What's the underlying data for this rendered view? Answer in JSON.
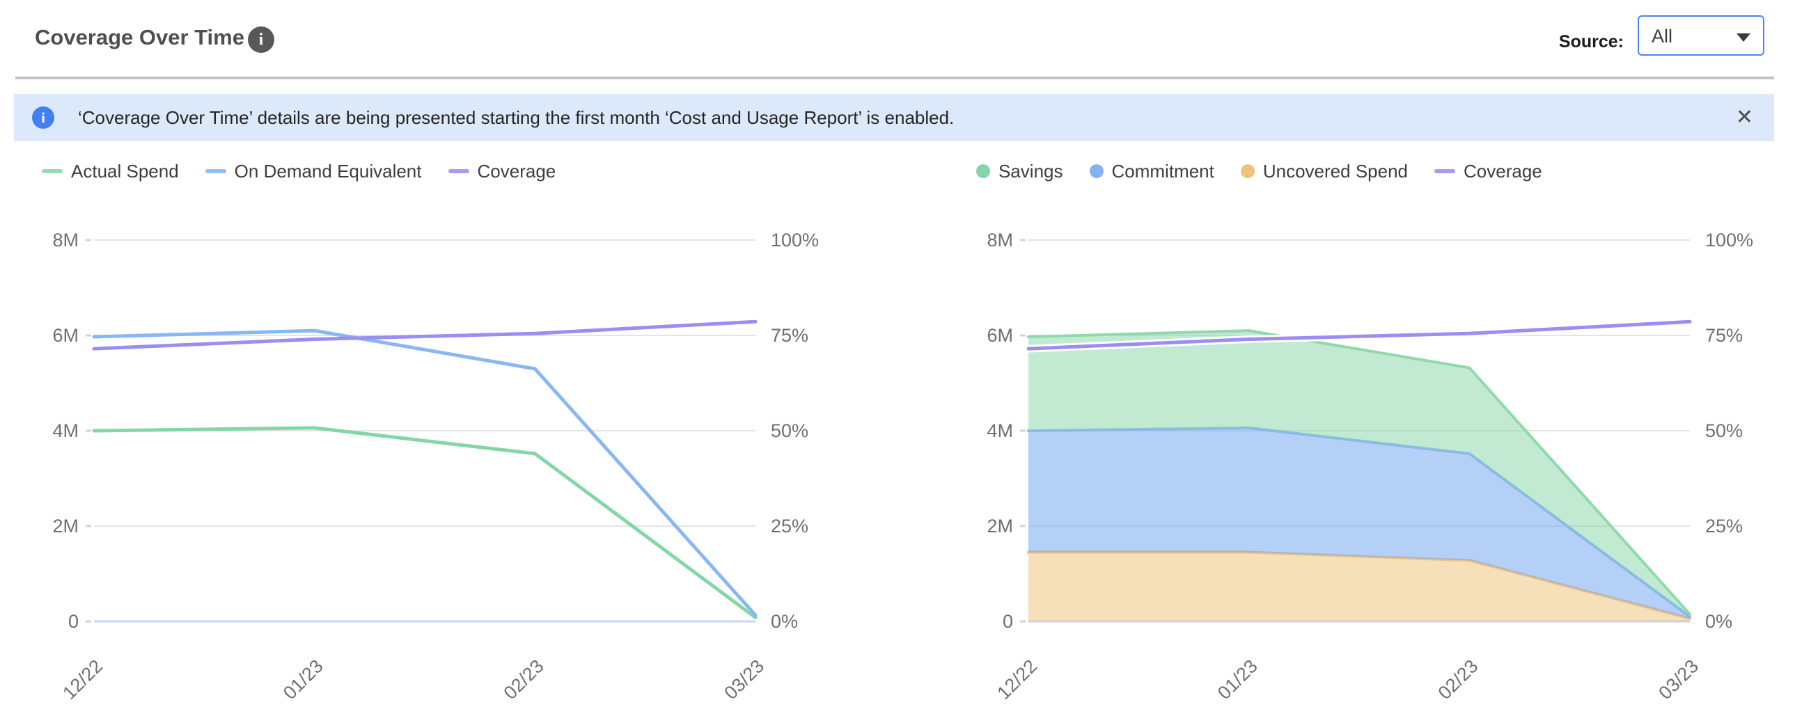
{
  "colors": {
    "accent-blue": "#4a84f2",
    "banner-bg": "#dce9fb",
    "banner-icon": "#4080f0",
    "divider": "#c3c3c3",
    "text-dark": "#4f4f4f",
    "icon-gray": "#585858",
    "grid": "#e4e4e7",
    "axis-line": "#c7d4ec",
    "tick-text": "#6f6f6f"
  },
  "header": {
    "title": "Coverage Over Time",
    "info_icon_label": "i",
    "source_label": "Source:",
    "source_value": "All"
  },
  "banner": {
    "icon_label": "i",
    "text": "‘Coverage Over Time’ details are being presented starting the first month ‘Cost and Usage Report’ is enabled.",
    "close_label": "✕"
  },
  "chart_data": [
    {
      "type": "line",
      "title": "Coverage Over Time - spend lines",
      "x": [
        "12/22",
        "01/23",
        "02/23",
        "03/23"
      ],
      "y_left": {
        "max": 8,
        "ticks": [
          "0",
          "2M",
          "4M",
          "6M",
          "8M"
        ],
        "unit": "M"
      },
      "y_right": {
        "max": 100,
        "ticks": [
          "0%",
          "25%",
          "50%",
          "75%",
          "100%"
        ],
        "unit": "%"
      },
      "grid": true,
      "legend_position": "top",
      "series": [
        {
          "name": "Actual Spend",
          "kind": "line",
          "axis": "left",
          "color": "#85d6a6",
          "values": [
            4.0,
            4.06,
            3.52,
            0.08
          ]
        },
        {
          "name": "On Demand Equivalent",
          "kind": "line",
          "axis": "left",
          "color": "#89b7f3",
          "values": [
            5.97,
            6.1,
            5.3,
            0.13
          ]
        },
        {
          "name": "Coverage",
          "kind": "line",
          "axis": "right",
          "color": "#9b8df1",
          "values": [
            71.5,
            74.0,
            75.5,
            78.6
          ]
        }
      ],
      "legend": [
        {
          "label": "Actual Spend",
          "marker": "dash",
          "color": "#95dcb2"
        },
        {
          "label": "On Demand Equivalent",
          "marker": "dash",
          "color": "#94bef5"
        },
        {
          "label": "Coverage",
          "marker": "dash",
          "color": "#a89bf3"
        }
      ]
    },
    {
      "type": "area",
      "title": "Coverage Over Time - stacked spend",
      "x": [
        "12/22",
        "01/23",
        "02/23",
        "03/23"
      ],
      "y_left": {
        "max": 8,
        "ticks": [
          "0",
          "2M",
          "4M",
          "6M",
          "8M"
        ],
        "unit": "M"
      },
      "y_right": {
        "max": 100,
        "ticks": [
          "0%",
          "25%",
          "50%",
          "75%",
          "100%"
        ],
        "unit": "%"
      },
      "grid": true,
      "legend_position": "top",
      "series": [
        {
          "name": "Uncovered Spend",
          "kind": "area",
          "axis": "left",
          "color": "#ecc184",
          "fill": "rgba(236,190,110,0.48)",
          "values": [
            1.45,
            1.45,
            1.28,
            0.06
          ]
        },
        {
          "name": "Commitment",
          "kind": "area",
          "axis": "left",
          "color": "#8ab4f2",
          "fill": "rgba(120,170,240,0.55)",
          "values": [
            2.55,
            2.61,
            2.24,
            0.04
          ]
        },
        {
          "name": "Savings",
          "kind": "area",
          "axis": "left",
          "color": "#8fd9ab",
          "fill": "rgba(133,214,166,0.50)",
          "values": [
            1.97,
            2.04,
            1.8,
            0.05
          ]
        },
        {
          "name": "Coverage",
          "kind": "line",
          "axis": "right",
          "color": "#9b8df1",
          "halo": true,
          "values": [
            71.5,
            74.0,
            75.5,
            78.6
          ]
        }
      ],
      "legend": [
        {
          "label": "Savings",
          "marker": "dot",
          "color": "#85d6a6"
        },
        {
          "label": "Commitment",
          "marker": "dot",
          "color": "#85b3f1"
        },
        {
          "label": "Uncovered Spend",
          "marker": "dot",
          "color": "#eec27e"
        },
        {
          "label": "Coverage",
          "marker": "dash",
          "color": "#a89bf3"
        }
      ]
    }
  ]
}
